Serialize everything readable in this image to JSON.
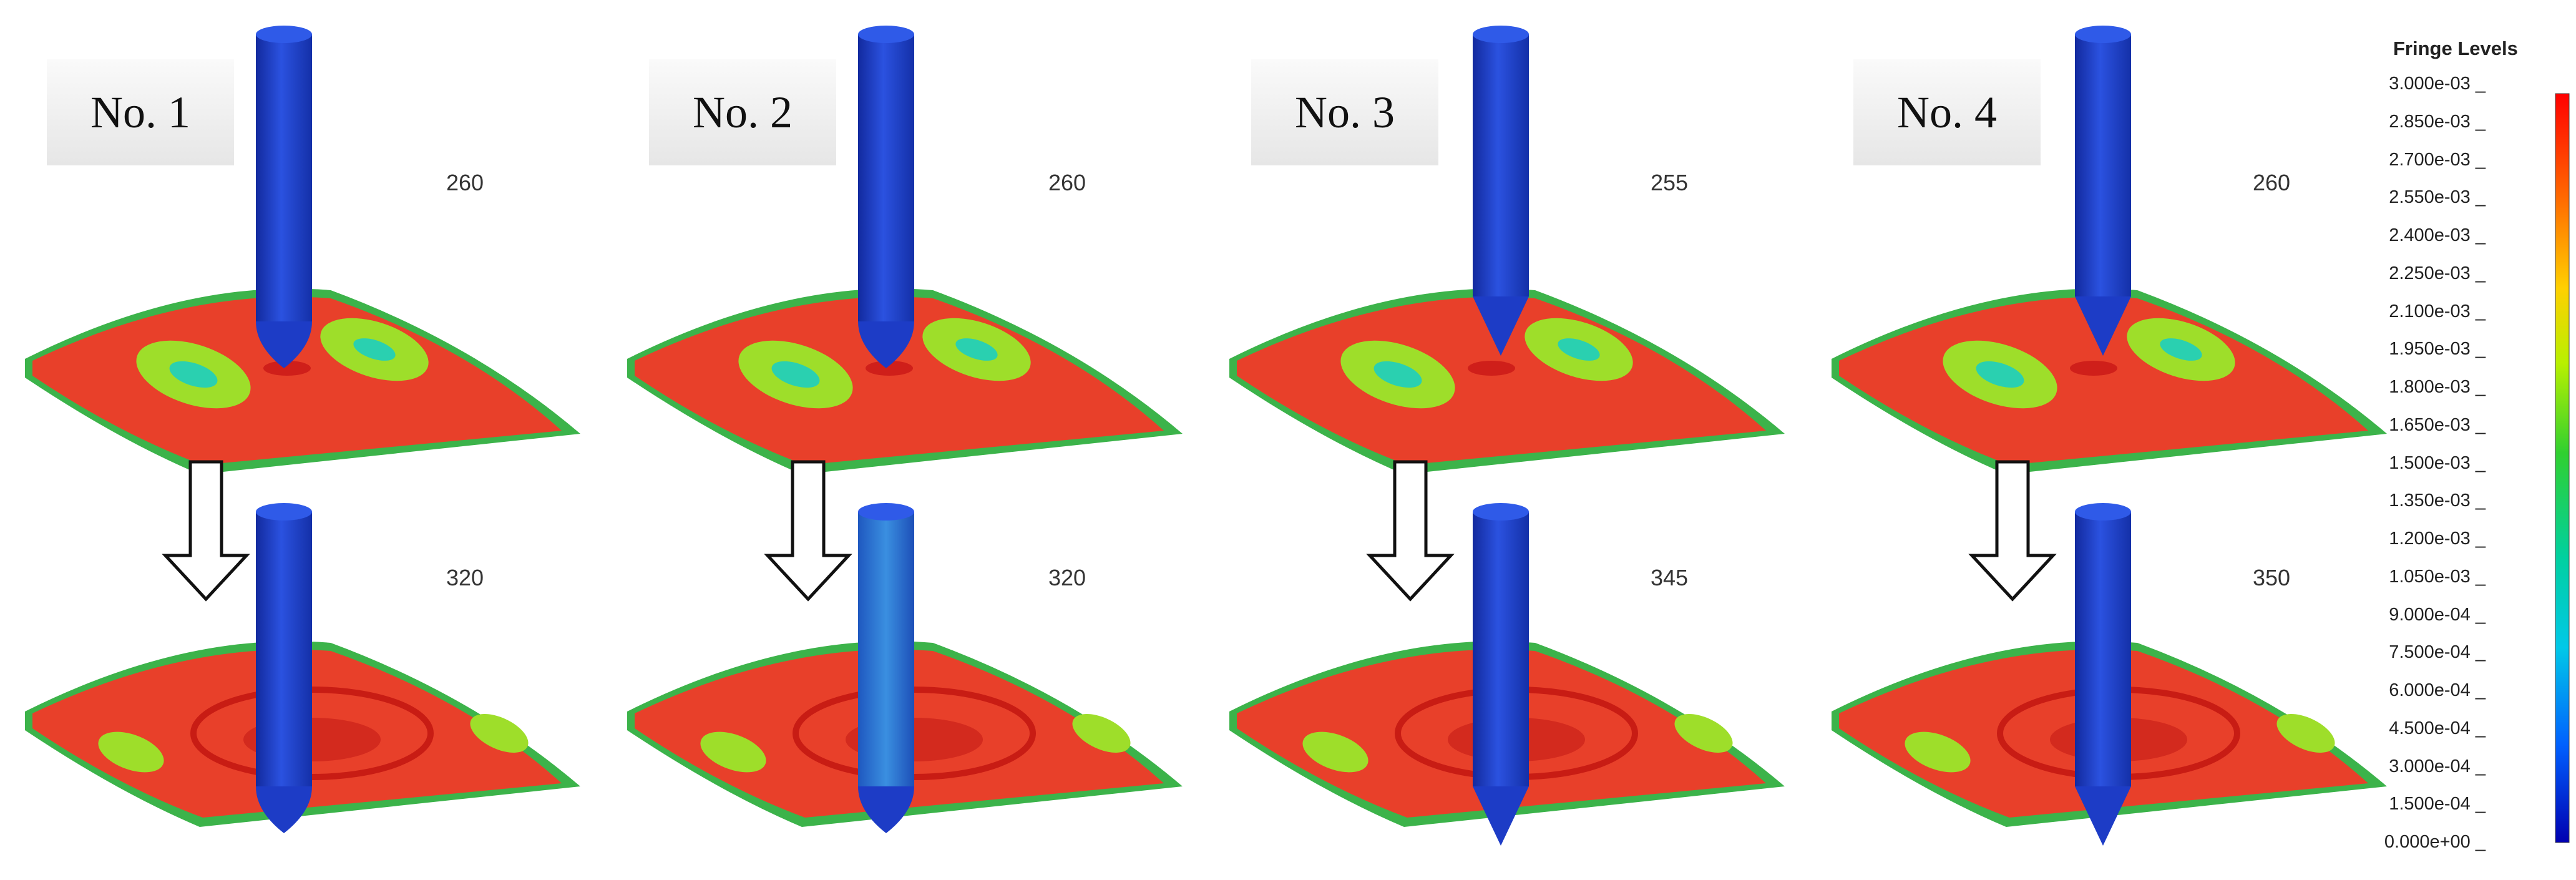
{
  "cases": [
    {
      "label": "No. 1",
      "time_top": "260",
      "time_bottom": "320",
      "tip": "round"
    },
    {
      "label": "No. 2",
      "time_top": "260",
      "time_bottom": "320",
      "tip": "round"
    },
    {
      "label": "No. 3",
      "time_top": "255",
      "time_bottom": "345",
      "tip": "sharp"
    },
    {
      "label": "No. 4",
      "time_top": "260",
      "time_bottom": "350",
      "tip": "sharp"
    }
  ],
  "legend": {
    "title": "Fringe Levels",
    "ticks": [
      "3.000e-03",
      "2.850e-03",
      "2.700e-03",
      "2.550e-03",
      "2.400e-03",
      "2.250e-03",
      "2.100e-03",
      "1.950e-03",
      "1.800e-03",
      "1.650e-03",
      "1.500e-03",
      "1.350e-03",
      "1.200e-03",
      "1.050e-03",
      "9.000e-04",
      "7.500e-04",
      "6.000e-04",
      "4.500e-04",
      "3.000e-04",
      "1.500e-04",
      "0.000e+00"
    ]
  },
  "colors": {
    "impactor": "#1f3fc8",
    "hot": "#e8402a",
    "mid": "#9ede2a",
    "cool": "#2ad0b0",
    "edge": "#3cb34a"
  }
}
